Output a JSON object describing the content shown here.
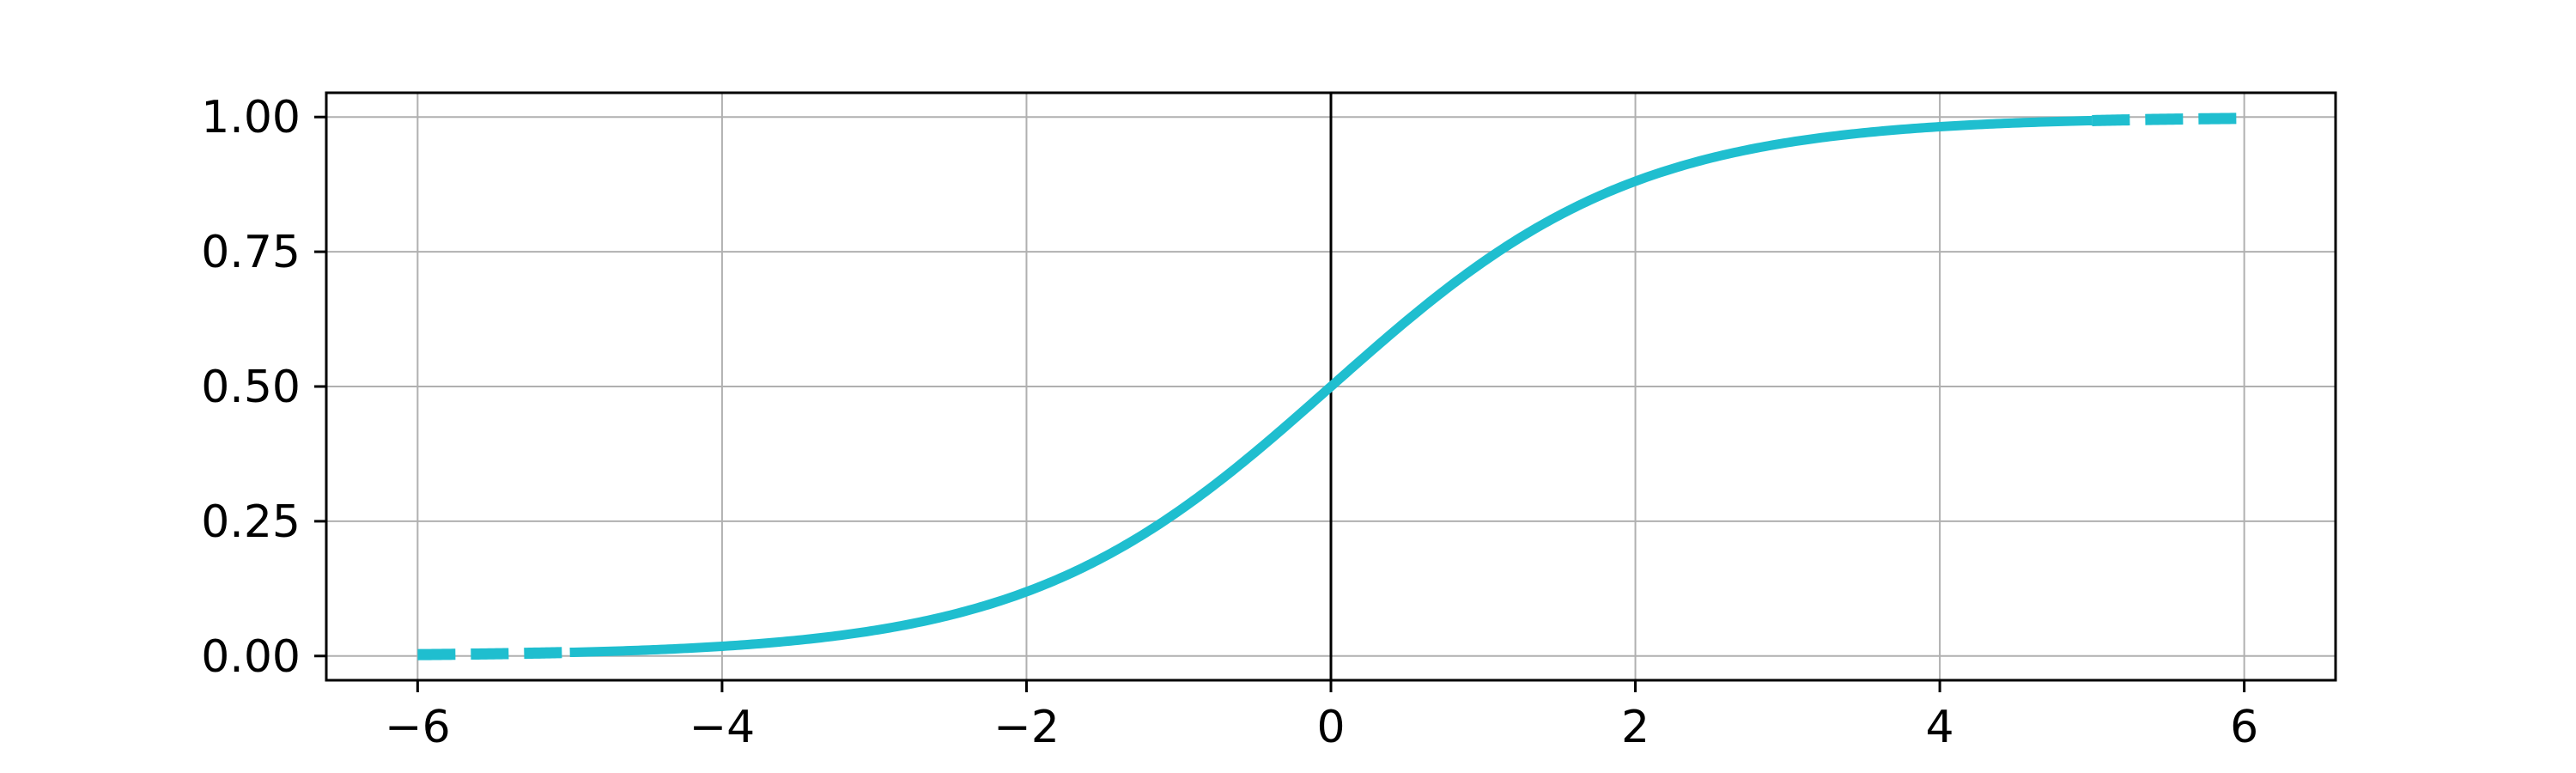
{
  "chart_data": {
    "type": "line",
    "title": "",
    "xlabel": "",
    "ylabel": "",
    "xlim": [
      -6.6,
      6.6
    ],
    "ylim": [
      -0.045,
      1.045
    ],
    "x_ticks": [
      -6,
      -4,
      -2,
      0,
      2,
      4,
      6
    ],
    "x_tick_labels": [
      "−6",
      "−4",
      "−2",
      "0",
      "2",
      "4",
      "6"
    ],
    "y_ticks": [
      0,
      0.25,
      0.5,
      0.75,
      1
    ],
    "y_tick_labels": [
      "0.00",
      "0.25",
      "0.50",
      "0.75",
      "1.00"
    ],
    "grid": true,
    "vertical_reference_line_x": 0,
    "series": [
      {
        "function": "logistic sigmoid 1/(1+e^-x)",
        "x_range": [
          -6,
          6
        ],
        "dashed_ranges": [
          [
            -6,
            -5
          ],
          [
            5,
            6
          ]
        ],
        "color": "#1fbecf"
      }
    ]
  }
}
